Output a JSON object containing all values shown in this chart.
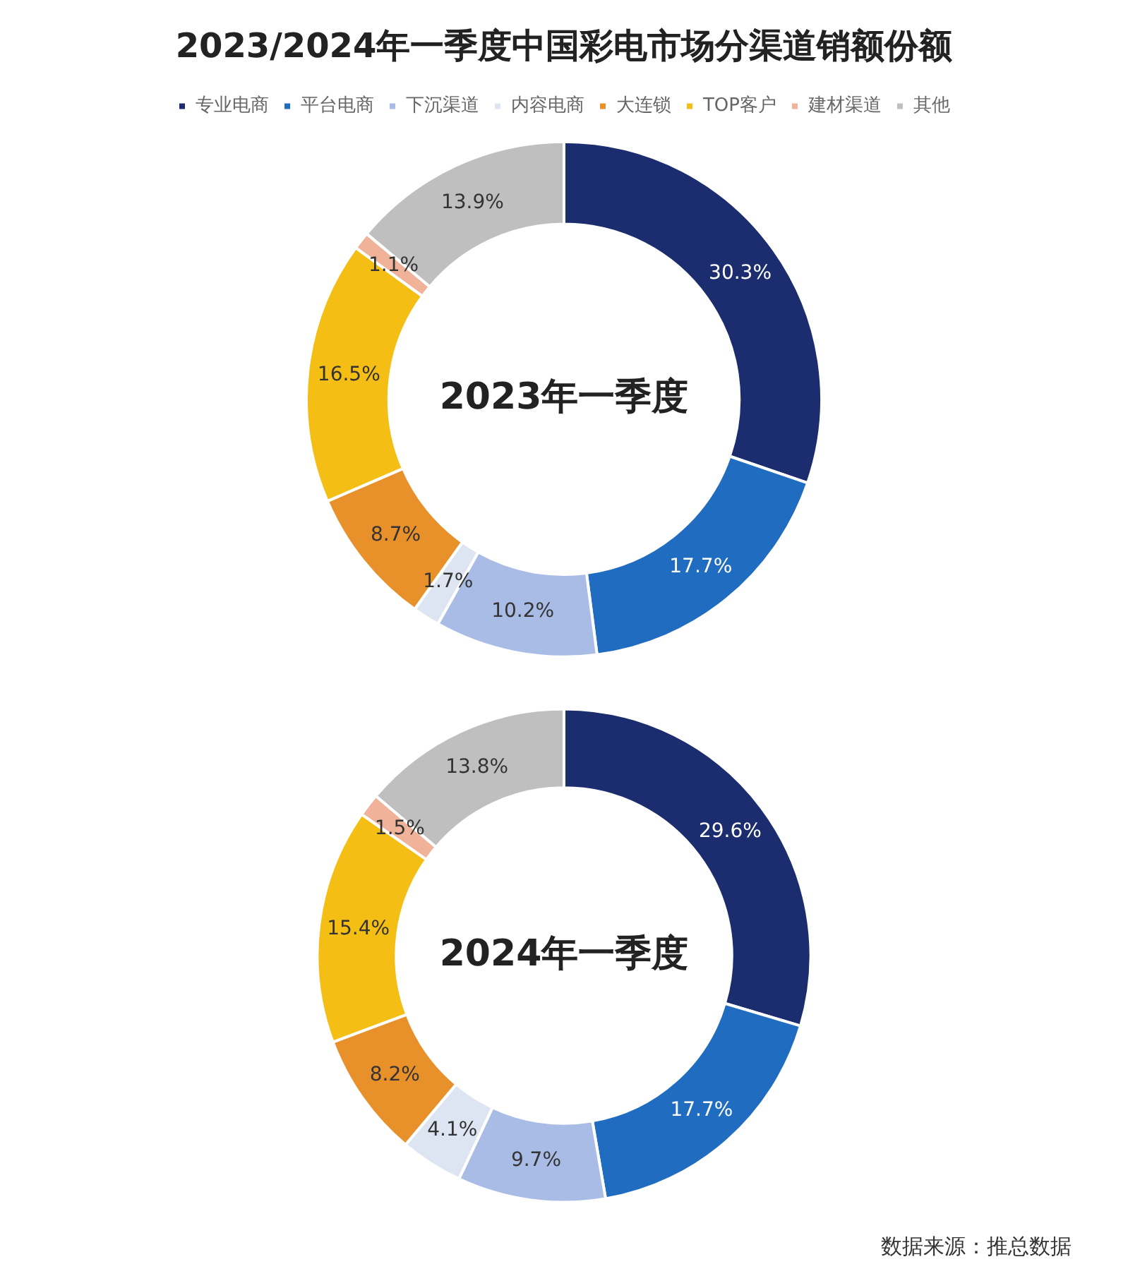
{
  "chart_data": [
    {
      "type": "donut",
      "title": "2023/2024年一季度中国彩电市场分渠道销额份额",
      "legend": "top",
      "categories": [
        "专业电商",
        "平台电商",
        "下沉渠道",
        "内容电商",
        "大连锁",
        "TOP客户",
        "建材渠道",
        "其他"
      ],
      "values": [
        30.3,
        17.7,
        10.2,
        1.7,
        8.7,
        16.5,
        1.1,
        13.9
      ],
      "value_labels": [
        "30.3%",
        "17.7%",
        "10.2%",
        "1.7%",
        "8.7%",
        "16.5%",
        "1.1%",
        "13.9%"
      ],
      "colors": [
        "#1b2d6e",
        "#1f6cc0",
        "#a8bce6",
        "#dde4f2",
        "#e8902a",
        "#f4be14",
        "#f0b39a",
        "#bfbfbf"
      ],
      "annotations": [
        "2023年一季度"
      ]
    },
    {
      "type": "donut",
      "legend": false,
      "categories": [
        null,
        null,
        null,
        null,
        null,
        null,
        null,
        null
      ],
      "values": [
        29.6,
        17.7,
        9.7,
        4.1,
        8.2,
        15.4,
        1.5,
        13.8
      ],
      "value_labels": [
        "29.6%",
        "17.7%",
        "9.7%",
        "4.1%",
        "8.2%",
        "15.4%",
        "1.5%",
        "13.8%"
      ],
      "colors": [
        "#1b2d6e",
        "#1f6cc0",
        "#a8bce6",
        "#dde4f2",
        "#e8902a",
        "#f4be14",
        "#f0b39a",
        "#bfbfbf"
      ],
      "annotations": [
        "2024年一季度",
        "数据来源：推总数据"
      ]
    }
  ]
}
